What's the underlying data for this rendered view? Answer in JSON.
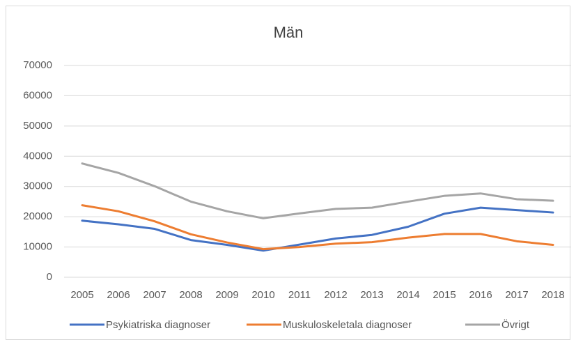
{
  "chart_data": {
    "type": "line",
    "title": "Män",
    "categories": [
      "2005",
      "2006",
      "2007",
      "2008",
      "2009",
      "2010",
      "2011",
      "2012",
      "2013",
      "2014",
      "2015",
      "2016",
      "2017",
      "2018"
    ],
    "series": [
      {
        "name": "Psykiatriska diagnoser",
        "color": "#4472c4",
        "values": [
          18700,
          17500,
          16000,
          12300,
          10700,
          8800,
          10800,
          12800,
          14000,
          16700,
          21000,
          23000,
          22200,
          21400
        ]
      },
      {
        "name": "Muskuloskeletala diagnoser",
        "color": "#ed7d31",
        "values": [
          23800,
          21800,
          18500,
          14200,
          11500,
          9300,
          10000,
          11100,
          11600,
          13100,
          14300,
          14300,
          11900,
          10700
        ]
      },
      {
        "name": "Övrigt",
        "color": "#a5a5a5",
        "values": [
          37600,
          34500,
          30100,
          25000,
          21800,
          19500,
          21100,
          22600,
          23000,
          25000,
          26900,
          27700,
          25800,
          25300
        ]
      }
    ],
    "ylim": [
      0,
      70000
    ],
    "yticks": [
      0,
      10000,
      20000,
      30000,
      40000,
      50000,
      60000,
      70000
    ],
    "grid": true,
    "legend": "bottom"
  }
}
